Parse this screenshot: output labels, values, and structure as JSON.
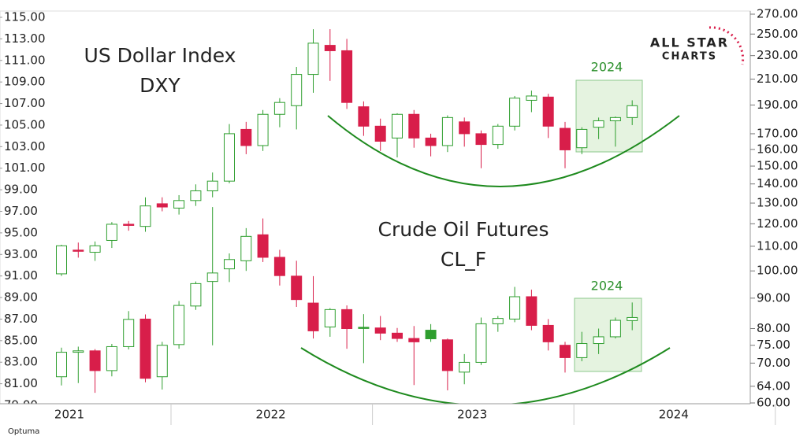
{
  "chart_data": {
    "type": "candlestick",
    "up_color": "#2e9e2e",
    "down_color": "#d81e4a",
    "x_labels": [
      "2021",
      "2022",
      "2023",
      "2024"
    ],
    "ylim": [
      79,
      115
    ],
    "yticks": [
      {
        "value": 115,
        "label": "115.00"
      },
      {
        "value": 113,
        "label": "113.00"
      },
      {
        "value": 111,
        "label": "111.00"
      },
      {
        "value": 109,
        "label": "109.00"
      },
      {
        "value": 107,
        "label": "107.00"
      },
      {
        "value": 105,
        "label": "105.00"
      },
      {
        "value": 103,
        "label": "103.00"
      },
      {
        "value": 101,
        "label": "101.00"
      },
      {
        "value": 99,
        "label": "99.00"
      },
      {
        "value": 97,
        "label": "97.00"
      },
      {
        "value": 95,
        "label": "95.00"
      },
      {
        "value": 93,
        "label": "93.00"
      },
      {
        "value": 91,
        "label": "91.00"
      },
      {
        "value": 89,
        "label": "89.00"
      },
      {
        "value": 87,
        "label": "87.00"
      },
      {
        "value": 85,
        "label": "85.00"
      },
      {
        "value": 83,
        "label": "83.00"
      },
      {
        "value": 81,
        "label": "81.00"
      },
      {
        "value": 79,
        "label": "79.00"
      }
    ],
    "y2lim": [
      60,
      270
    ],
    "y2scale": "log",
    "y2ticks": [
      {
        "value": 270,
        "label": "270.00"
      },
      {
        "value": 250,
        "label": "250.00"
      },
      {
        "value": 230,
        "label": "230.00"
      },
      {
        "value": 210,
        "label": "210.00"
      },
      {
        "value": 190,
        "label": "190.00"
      },
      {
        "value": 170,
        "label": "170.00"
      },
      {
        "value": 160,
        "label": "160.00"
      },
      {
        "value": 150,
        "label": "150.00"
      },
      {
        "value": 140,
        "label": "140.00"
      },
      {
        "value": 130,
        "label": "130.00"
      },
      {
        "value": 120,
        "label": "120.00"
      },
      {
        "value": 110,
        "label": "110.00"
      },
      {
        "value": 100,
        "label": "100.00"
      },
      {
        "value": 90,
        "label": "90.00"
      },
      {
        "value": 80,
        "label": "80.00"
      },
      {
        "value": 75,
        "label": "75.00"
      },
      {
        "value": 70,
        "label": "70.00"
      },
      {
        "value": 64,
        "label": "64.00"
      },
      {
        "value": 60,
        "label": "60.00"
      }
    ],
    "series": [
      {
        "title": "US Dollar Index",
        "name": "DXY",
        "axis": "y",
        "open": [
          91.2,
          93.4,
          93.2,
          94.3,
          95.8,
          95.6,
          97.7,
          97.3,
          98.0,
          98.9,
          99.8,
          104.6,
          103.1,
          106.0,
          106.8,
          109.7,
          112.4,
          111.9,
          106.7,
          104.9,
          103.8,
          106.0,
          103.8,
          103.1,
          105.3,
          104.2,
          103.2,
          104.9,
          107.3,
          107.6,
          104.7,
          102.9,
          104.8,
          105.4,
          105.7
        ],
        "high": [
          93.9,
          94.1,
          94.2,
          96.0,
          96.1,
          98.3,
          98.3,
          98.5,
          99.5,
          100.6,
          105.1,
          105.3,
          106.4,
          107.5,
          110.4,
          113.9,
          113.9,
          113.0,
          107.2,
          105.6,
          106.1,
          106.4,
          104.2,
          105.9,
          105.7,
          104.5,
          105.1,
          107.7,
          108.2,
          107.9,
          105.3,
          104.8,
          105.7,
          105.8,
          107.3
        ],
        "low": [
          91.0,
          92.7,
          92.4,
          93.6,
          95.2,
          95.1,
          97.0,
          96.7,
          97.5,
          98.3,
          99.6,
          102.3,
          102.6,
          104.8,
          104.6,
          108.0,
          109.1,
          106.5,
          104.0,
          102.6,
          102.0,
          102.9,
          102.1,
          102.5,
          103.0,
          101.0,
          102.8,
          104.5,
          106.2,
          103.8,
          101.0,
          102.3,
          103.7,
          103.0,
          105.0
        ],
        "close": [
          93.8,
          93.3,
          93.8,
          95.8,
          95.7,
          97.5,
          97.4,
          98.0,
          98.9,
          99.8,
          104.2,
          103.1,
          106.0,
          107.1,
          109.7,
          112.6,
          111.9,
          107.1,
          104.9,
          103.5,
          106.0,
          103.8,
          103.1,
          105.7,
          104.2,
          103.2,
          104.9,
          107.5,
          107.7,
          104.9,
          102.7,
          104.6,
          105.4,
          105.7,
          106.8
        ]
      },
      {
        "title": "Crude Oil Futures",
        "name": "CL_F",
        "axis": "y2",
        "open": [
          66.4,
          73.0,
          73.4,
          68.0,
          74.6,
          83.0,
          66.4,
          75.2,
          87.3,
          96.0,
          100.8,
          104.0,
          115.0,
          105.4,
          98.0,
          88.3,
          80.5,
          86.1,
          80.4,
          80.2,
          78.6,
          77.0,
          79.5,
          76.6,
          67.6,
          70.2,
          81.5,
          83.0,
          90.5,
          81.0,
          75.0,
          71.5,
          75.5,
          77.5,
          82.5
        ],
        "high": [
          74.3,
          74.6,
          73.9,
          75.4,
          85.6,
          84.5,
          76.0,
          89.0,
          96.0,
          128.0,
          107.0,
          118.0,
          122.5,
          108.5,
          104.0,
          98.0,
          86.6,
          87.5,
          84.6,
          84.0,
          80.2,
          80.8,
          81.4,
          77.0,
          72.5,
          83.5,
          84.0,
          94.0,
          93.0,
          83.0,
          76.0,
          79.0,
          80.0,
          83.5,
          88.5
        ],
        "low": [
          64.2,
          64.8,
          62.4,
          66.5,
          73.8,
          65.0,
          63.2,
          74.0,
          86.0,
          75.0,
          95.8,
          100.0,
          103.5,
          94.5,
          87.0,
          77.0,
          77.5,
          74.0,
          70.0,
          76.5,
          76.0,
          64.3,
          76.0,
          63.0,
          64.5,
          69.5,
          79.0,
          82.0,
          79.5,
          73.5,
          67.5,
          70.5,
          72.5,
          77.0,
          79.5
        ],
        "close": [
          73.0,
          73.4,
          68.0,
          74.6,
          82.9,
          66.0,
          75.0,
          87.5,
          95.2,
          99.2,
          104.5,
          114.3,
          105.4,
          98.2,
          89.5,
          79.3,
          86.1,
          80.0,
          80.2,
          78.6,
          77.0,
          76.0,
          76.9,
          68.0,
          70.2,
          81.5,
          83.2,
          90.5,
          81.0,
          76.0,
          71.5,
          75.5,
          77.5,
          82.6,
          83.5
        ]
      }
    ],
    "annotations": [
      "2024",
      "2024"
    ]
  },
  "logo": {
    "line1": "ALL STAR",
    "line2": "CHARTS"
  },
  "footer": "Optuma"
}
